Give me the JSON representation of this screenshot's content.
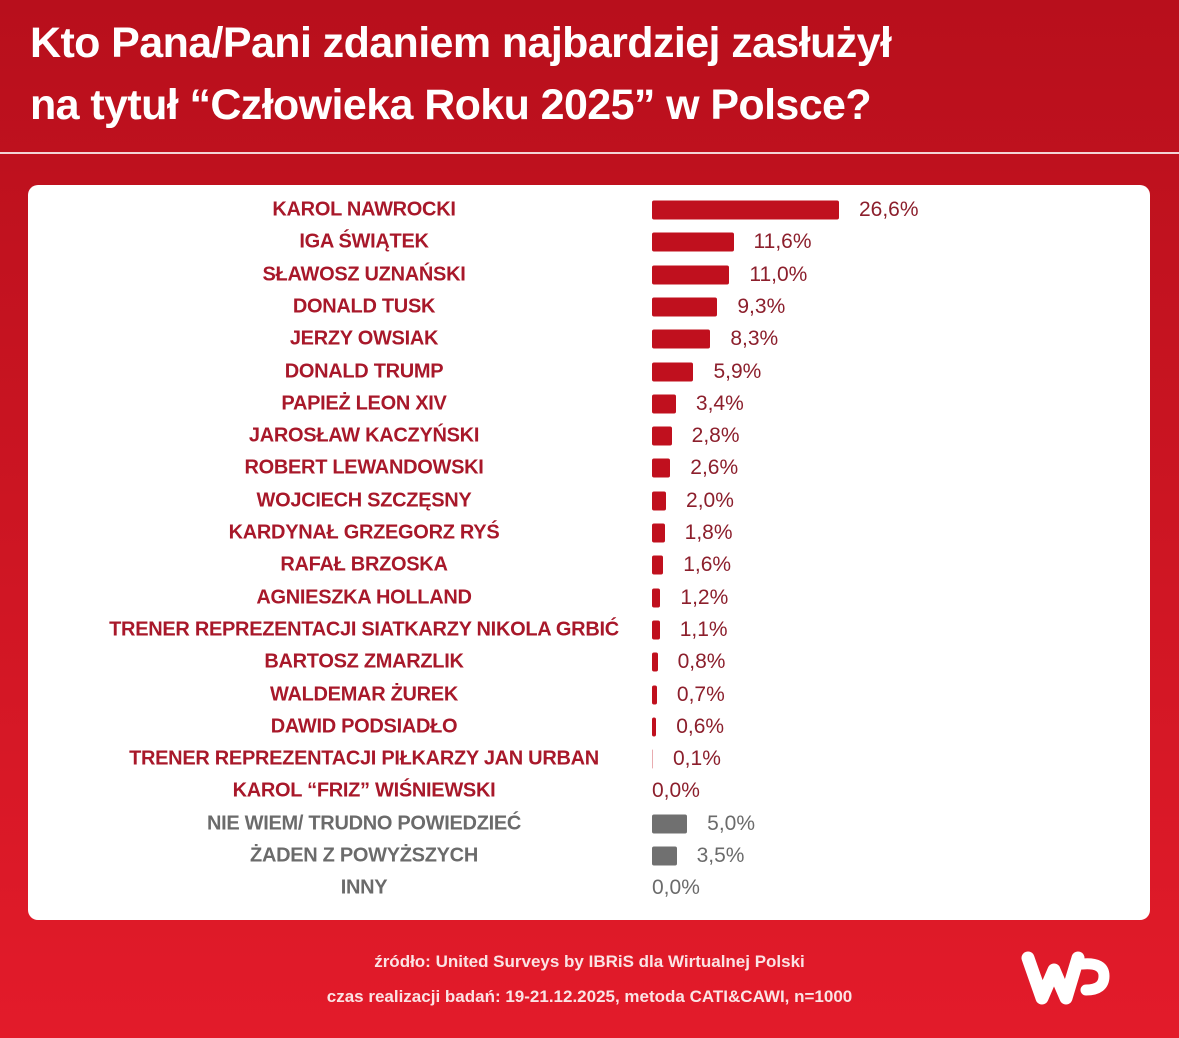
{
  "title": {
    "line1": "Kto Pana/Pani zdaniem najbardziej zasłużył",
    "line2": "na tytuł “Człowieka Roku 2025” w Polsce?"
  },
  "colors": {
    "primary_bar": "#c0101e",
    "primary_label": "#a8182a",
    "other_bar": "#707070",
    "other_label": "#6b6b6b"
  },
  "chart_data": {
    "type": "bar",
    "orientation": "horizontal",
    "unit": "%",
    "xlim": [
      0,
      30
    ],
    "grid": false,
    "categories": [
      "KAROL NAWROCKI",
      "IGA ŚWIĄTEK",
      "SŁAWOSZ UZNAŃSKI",
      "DONALD TUSK",
      "JERZY OWSIAK",
      "DONALD TRUMP",
      "PAPIEŻ LEON XIV",
      "JAROSŁAW KACZYŃSKI",
      "ROBERT LEWANDOWSKI",
      "WOJCIECH SZCZĘSNY",
      "KARDYNAŁ GRZEGORZ RYŚ",
      "RAFAŁ BRZOSKA",
      "AGNIESZKA HOLLAND",
      "TRENER REPREZENTACJI SIATKARZY NIKOLA GRBIĆ",
      "BARTOSZ ZMARZLIK",
      "WALDEMAR ŻUREK",
      "DAWID PODSIADŁO",
      "TRENER REPREZENTACJI PIŁKARZY JAN URBAN",
      "KAROL “FRIZ” WIŚNIEWSKI",
      "NIE WIEM/ TRUDNO POWIEDZIEĆ",
      "ŻADEN Z POWYŻSZYCH",
      "INNY"
    ],
    "values": [
      26.6,
      11.6,
      11.0,
      9.3,
      8.3,
      5.9,
      3.4,
      2.8,
      2.6,
      2.0,
      1.8,
      1.6,
      1.2,
      1.1,
      0.8,
      0.7,
      0.6,
      0.1,
      0.0,
      5.0,
      3.5,
      0.0
    ],
    "value_labels": [
      "26,6%",
      "11,6%",
      "11,0%",
      "9,3%",
      "8,3%",
      "5,9%",
      "3,4%",
      "2,8%",
      "2,6%",
      "2,0%",
      "1,8%",
      "1,6%",
      "1,2%",
      "1,1%",
      "0,8%",
      "0,7%",
      "0,6%",
      "0,1%",
      "0,0%",
      "5,0%",
      "3,5%",
      "0,0%"
    ],
    "groups": [
      "person",
      "person",
      "person",
      "person",
      "person",
      "person",
      "person",
      "person",
      "person",
      "person",
      "person",
      "person",
      "person",
      "person",
      "person",
      "person",
      "person",
      "person",
      "person",
      "other",
      "other",
      "other"
    ]
  },
  "footer": {
    "source": "źródło: United Surveys by IBRiS dla Wirtualnej Polski",
    "method": "czas realizacji badań: 19-21.12.2025, metoda CATI&CAWI, n=1000"
  },
  "logo": {
    "text": "WP",
    "icon": "wp-logo"
  }
}
